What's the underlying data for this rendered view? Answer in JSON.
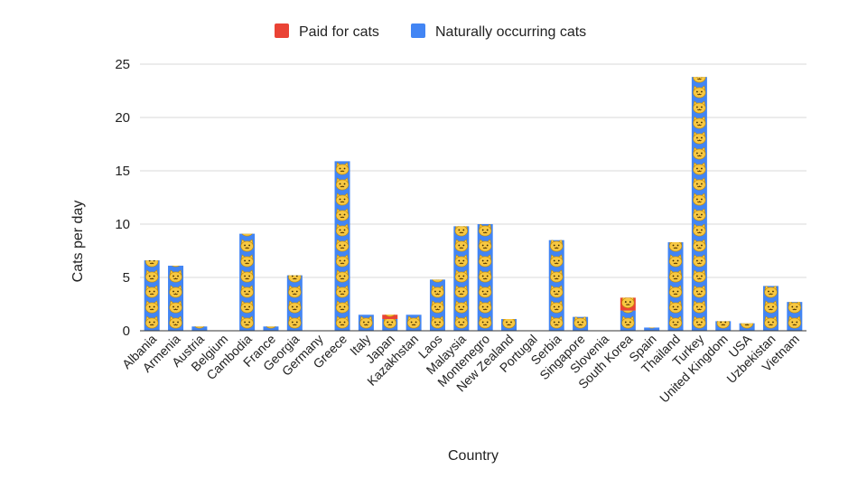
{
  "chart_data": {
    "type": "bar",
    "stacked": true,
    "xlabel": "Country",
    "ylabel": "Cats per day",
    "ylim": [
      0,
      25
    ],
    "yticks": [
      "0",
      "5",
      "10",
      "15",
      "20",
      "25"
    ],
    "grid": true,
    "legend_position": "top",
    "bar_pattern_icon": "cat-face-icon",
    "categories": [
      "Albania",
      "Armenia",
      "Austria",
      "Belgium",
      "Cambodia",
      "France",
      "Georgia",
      "Germany",
      "Greece",
      "Italy",
      "Japan",
      "Kazakhstan",
      "Laos",
      "Malaysia",
      "Montenegro",
      "New Zealand",
      "Portugal",
      "Serbia",
      "Singapore",
      "Slovenia",
      "South Korea",
      "Spain",
      "Thailand",
      "Turkey",
      "United Kingdom",
      "USA",
      "Uzbekistan",
      "Vietnam"
    ],
    "series": [
      {
        "name": "Paid for cats",
        "color": "#ea4335",
        "values": [
          0,
          0,
          0,
          0,
          0,
          0,
          0,
          0,
          0,
          0,
          0.4,
          0,
          0,
          0,
          0,
          0,
          0,
          0,
          0,
          0,
          1.2,
          0,
          0,
          0,
          0,
          0,
          0,
          0
        ]
      },
      {
        "name": "Naturally occurring cats",
        "color": "#4285f4",
        "values": [
          6.6,
          6.1,
          0.4,
          0,
          9.1,
          0.4,
          5.2,
          0,
          15.9,
          1.5,
          1.1,
          1.5,
          4.8,
          9.8,
          10.0,
          1.1,
          0,
          8.5,
          1.3,
          0,
          1.9,
          0.3,
          8.3,
          23.8,
          0.9,
          0.7,
          4.2,
          2.7
        ]
      }
    ]
  }
}
